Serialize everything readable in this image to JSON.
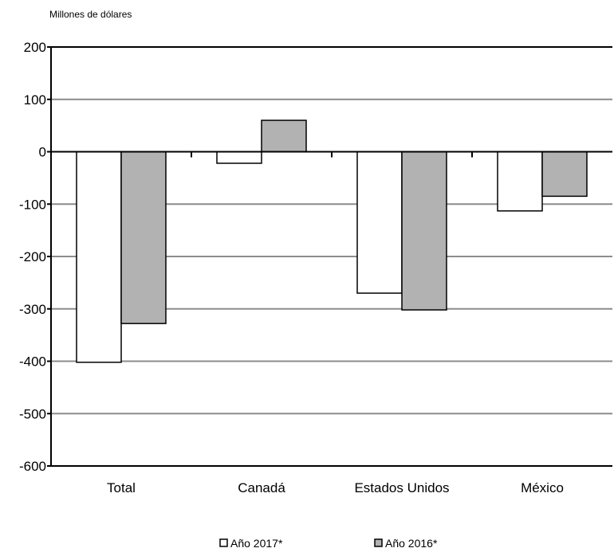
{
  "chart_data": {
    "type": "bar",
    "ylabel": "Millones de dólares",
    "categories": [
      "Total",
      "Canadá",
      "Estados Unidos",
      "México"
    ],
    "series": [
      {
        "name": "Año 2017*",
        "values": [
          -402,
          -22,
          -270,
          -113
        ],
        "color": "#ffffff"
      },
      {
        "name": "Año 2016*",
        "values": [
          -328,
          60,
          -302,
          -85
        ],
        "color": "#b2b2b2"
      }
    ],
    "ylim": [
      -600,
      200
    ],
    "yticks": [
      "200",
      "100",
      "0",
      "-100",
      "-200",
      "-300",
      "-400",
      "-500",
      "-600"
    ],
    "grid": true,
    "legend_position": "bottom"
  }
}
